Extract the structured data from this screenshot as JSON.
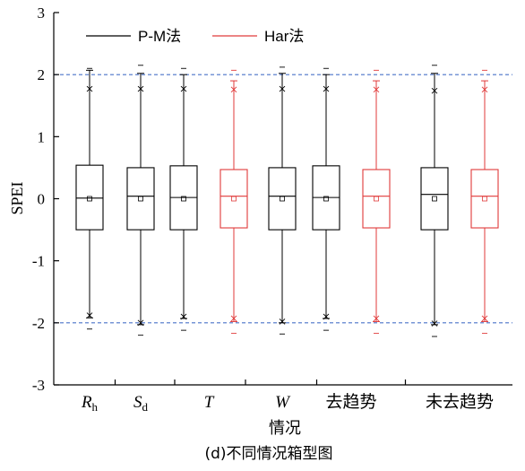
{
  "chart_data": {
    "type": "boxplot",
    "title": "",
    "caption": "(d)不同情况箱型图",
    "xlabel": "情况",
    "ylabel": "SPEI",
    "ylim": [
      -3,
      3
    ],
    "yticks": [
      3,
      2,
      1,
      0,
      -1,
      -2,
      -3
    ],
    "reference_lines": [
      2,
      -2
    ],
    "categories": [
      {
        "main": "R",
        "sub": "h",
        "italic": true
      },
      {
        "main": "S",
        "sub": "d",
        "italic": true
      },
      {
        "main": "T",
        "sub": "",
        "italic": true
      },
      {
        "main": "W",
        "sub": "",
        "italic": true
      },
      {
        "main": "去趋势",
        "sub": "",
        "italic": false
      },
      {
        "main": "未去趋势",
        "sub": "",
        "italic": false
      }
    ],
    "legend": {
      "position": "top-left"
    },
    "series": [
      {
        "name": "P-M法",
        "color": "#000000",
        "boxes": [
          {
            "category": 0,
            "whisker_low": -1.92,
            "q1": -0.5,
            "median": 0.01,
            "q3": 0.54,
            "whisker_high": 2.07,
            "mean": 0.0,
            "p1": -1.88,
            "p99": 1.77,
            "min": -2.1,
            "max": 2.1
          },
          {
            "category": 1,
            "whisker_low": -2.03,
            "q1": -0.5,
            "median": 0.04,
            "q3": 0.5,
            "whisker_high": 2.02,
            "mean": 0.0,
            "p1": -2.0,
            "p99": 1.77,
            "min": -2.2,
            "max": 2.15
          },
          {
            "category": 2,
            "whisker_low": -1.93,
            "q1": -0.5,
            "median": 0.02,
            "q3": 0.53,
            "whisker_high": 2.0,
            "mean": 0.0,
            "p1": -1.9,
            "p99": 1.77,
            "min": -2.12,
            "max": 2.1
          },
          {
            "category": 3,
            "whisker_low": -2.0,
            "q1": -0.5,
            "median": 0.04,
            "q3": 0.5,
            "whisker_high": 2.02,
            "mean": 0.0,
            "p1": -1.98,
            "p99": 1.77,
            "min": -2.18,
            "max": 2.12
          },
          {
            "category": 4,
            "whisker_low": -1.93,
            "q1": -0.5,
            "median": 0.02,
            "q3": 0.53,
            "whisker_high": 2.0,
            "mean": 0.0,
            "p1": -1.9,
            "p99": 1.77,
            "min": -2.12,
            "max": 2.1
          },
          {
            "category": 5,
            "whisker_low": -2.03,
            "q1": -0.5,
            "median": 0.07,
            "q3": 0.5,
            "whisker_high": 2.02,
            "mean": 0.0,
            "p1": -2.01,
            "p99": 1.74,
            "min": -2.22,
            "max": 2.15
          }
        ]
      },
      {
        "name": "Har法",
        "color": "#e03a3a",
        "boxes": [
          {
            "category": 2,
            "whisker_low": -1.98,
            "q1": -0.47,
            "median": 0.04,
            "q3": 0.47,
            "whisker_high": 1.9,
            "mean": 0.0,
            "p1": -1.93,
            "p99": 1.76,
            "min": -2.17,
            "max": 2.07
          },
          {
            "category": 4,
            "whisker_low": -1.98,
            "q1": -0.47,
            "median": 0.04,
            "q3": 0.47,
            "whisker_high": 1.9,
            "mean": 0.0,
            "p1": -1.93,
            "p99": 1.76,
            "min": -2.17,
            "max": 2.07
          },
          {
            "category": 5,
            "whisker_low": -1.98,
            "q1": -0.47,
            "median": 0.04,
            "q3": 0.47,
            "whisker_high": 1.9,
            "mean": 0.0,
            "p1": -1.93,
            "p99": 1.76,
            "min": -2.17,
            "max": 2.07
          }
        ]
      }
    ]
  }
}
